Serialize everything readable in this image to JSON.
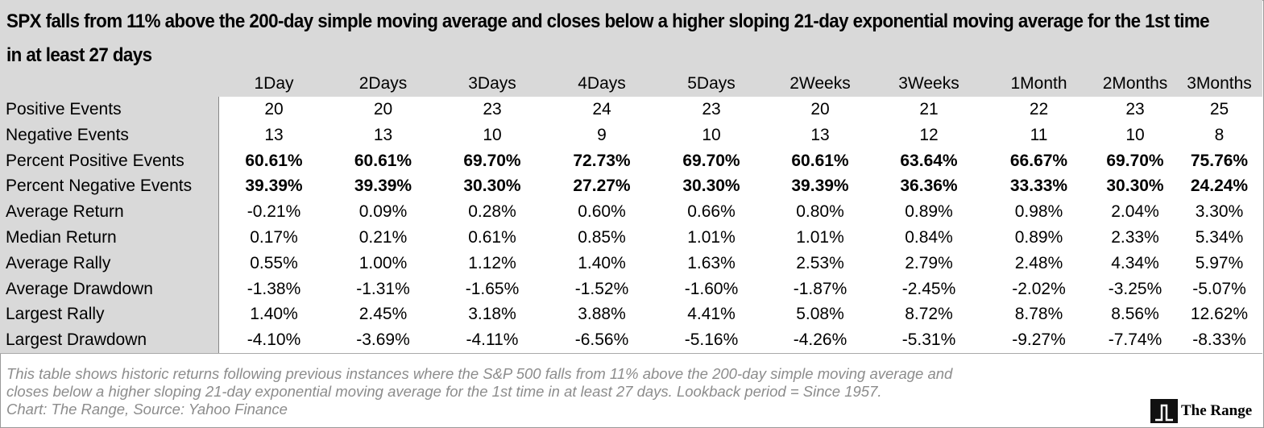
{
  "title": "SPX falls from 11% above the 200-day simple moving average and closes below a higher sloping 21-day exponential moving average for the 1st time in at least  27 days",
  "table": {
    "columns": [
      "1Day",
      "2Days",
      "3Days",
      "4Days",
      "5Days",
      "2Weeks",
      "3Weeks",
      "1Month",
      "2Months",
      "3Months"
    ],
    "rows": [
      {
        "label": "Positive Events",
        "values": [
          "20",
          "20",
          "23",
          "24",
          "23",
          "20",
          "21",
          "22",
          "23",
          "25"
        ]
      },
      {
        "label": "Negative Events",
        "values": [
          "13",
          "13",
          "10",
          "9",
          "10",
          "13",
          "12",
          "11",
          "10",
          "8"
        ]
      },
      {
        "label": "Percent Positive Events",
        "values": [
          "60.61%",
          "60.61%",
          "69.70%",
          "72.73%",
          "69.70%",
          "60.61%",
          "63.64%",
          "66.67%",
          "69.70%",
          "75.76%"
        ]
      },
      {
        "label": "Percent Negative Events",
        "values": [
          "39.39%",
          "39.39%",
          "30.30%",
          "27.27%",
          "30.30%",
          "39.39%",
          "36.36%",
          "33.33%",
          "30.30%",
          "24.24%"
        ]
      },
      {
        "label": "Average Return",
        "values": [
          "-0.21%",
          "0.09%",
          "0.28%",
          "0.60%",
          "0.66%",
          "0.80%",
          "0.89%",
          "0.98%",
          "2.04%",
          "3.30%"
        ]
      },
      {
        "label": "Median Return",
        "values": [
          "0.17%",
          "0.21%",
          "0.61%",
          "0.85%",
          "1.01%",
          "1.01%",
          "0.84%",
          "0.89%",
          "2.33%",
          "5.34%"
        ]
      },
      {
        "label": "Average Rally",
        "values": [
          "0.55%",
          "1.00%",
          "1.12%",
          "1.40%",
          "1.63%",
          "2.53%",
          "2.79%",
          "2.48%",
          "4.34%",
          "5.97%"
        ]
      },
      {
        "label": "Average Drawdown",
        "values": [
          "-1.38%",
          "-1.31%",
          "-1.65%",
          "-1.52%",
          "-1.60%",
          "-1.87%",
          "-2.45%",
          "-2.02%",
          "-3.25%",
          "-5.07%"
        ]
      },
      {
        "label": "Largest Rally",
        "values": [
          "1.40%",
          "2.45%",
          "3.18%",
          "3.88%",
          "4.41%",
          "5.08%",
          "8.72%",
          "8.78%",
          "8.56%",
          "12.62%"
        ]
      },
      {
        "label": "Largest Drawdown",
        "values": [
          "-4.10%",
          "-3.69%",
          "-4.11%",
          "-6.56%",
          "-5.16%",
          "-4.26%",
          "-5.31%",
          "-9.27%",
          "-7.74%",
          "-8.33%"
        ]
      }
    ]
  },
  "footer": {
    "note": [
      "This table shows historic returns following previous instances where the S&P 500 falls from 11% above the 200-day simple moving average and",
      "closes below a higher sloping 21-day exponential moving average for the 1st time in at least 27 days. Lookback period = Since 1957."
    ],
    "source": "Chart: The Range, Source: Yahoo Finance",
    "logo": "The Range"
  }
}
